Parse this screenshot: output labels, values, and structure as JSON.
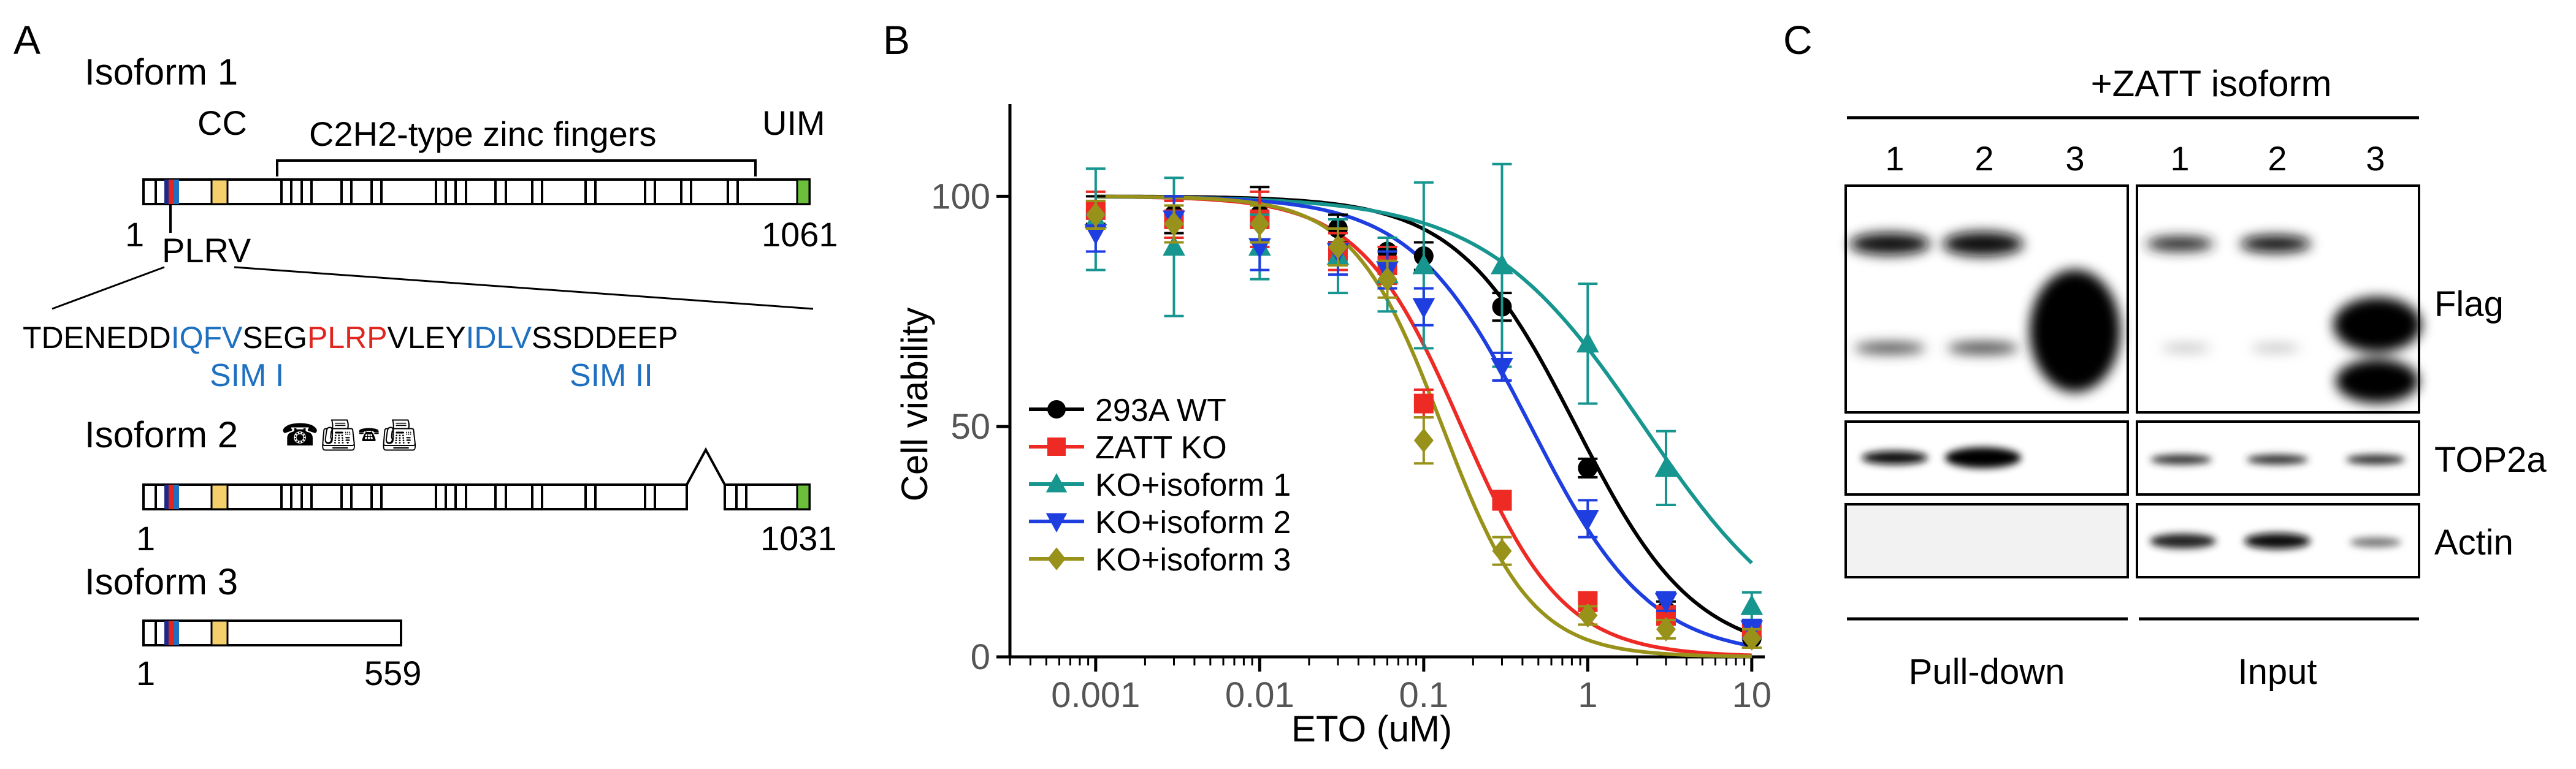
{
  "panelA": {
    "label": "A",
    "isoform1": {
      "title": "Isoform 1",
      "cc": "CC",
      "zinc": "C2H2-type zinc fingers",
      "uim": "UIM",
      "start": "1",
      "end": "1061",
      "plrv": "PLRV",
      "seq": {
        "s1": "TDENEDD",
        "s2": "IQFV",
        "s3": "SEG",
        "s4": "PLRP",
        "s5": "VLEY",
        "s6": "IDLV",
        "s7": "SSDDEEP"
      },
      "sim1": "SIM I",
      "sim2": "SIM II"
    },
    "isoform2": {
      "title": "Isoform 2",
      "decor": "☎︎📠︎🕿︎📠︎",
      "start": "1",
      "end": "1031"
    },
    "isoform3": {
      "title": "Isoform 3",
      "start": "1",
      "end": "559"
    },
    "colors": {
      "cc": "#f5cf6c",
      "uim": "#6bbf3a",
      "sim": "#1f70c1",
      "plrp": "#e0261f",
      "motif_dark": "#1b2a8a"
    }
  },
  "panelB": {
    "label": "B",
    "chart_data": {
      "type": "scatter",
      "title": "",
      "xlabel": "ETO (uM)",
      "ylabel": "Cell viability",
      "xscale": "log",
      "xlim": [
        0.0003,
        12
      ],
      "ylim": [
        0,
        120
      ],
      "xticks": [
        0.001,
        0.01,
        0.1,
        1,
        10
      ],
      "xtick_labels": [
        "0.001",
        "0.01",
        "0.1",
        "1",
        "10"
      ],
      "yticks": [
        0,
        50,
        100
      ],
      "ytick_labels": [
        "0",
        "50",
        "100"
      ],
      "x": [
        0.001,
        0.003,
        0.01,
        0.03,
        0.06,
        0.1,
        0.3,
        1,
        3,
        10
      ],
      "legend_position": "bottom-left",
      "series": [
        {
          "name": "293A WT",
          "color": "#000000",
          "marker": "circle",
          "ic50": 0.85,
          "hill": 1.2,
          "values": [
            97,
            96,
            96,
            93,
            88,
            87,
            76,
            41,
            10,
            4
          ],
          "errors": [
            3,
            4,
            6,
            3,
            3,
            3,
            3,
            2,
            2,
            2
          ]
        },
        {
          "name": "ZATT KO",
          "color": "#ee2a24",
          "marker": "square",
          "ic50": 0.17,
          "hill": 1.4,
          "values": [
            97,
            95,
            95,
            88,
            85,
            55,
            34,
            12,
            9,
            6
          ],
          "errors": [
            4,
            4,
            6,
            4,
            4,
            3,
            2,
            2,
            2,
            2
          ]
        },
        {
          "name": "KO+isoform 1",
          "color": "#17958f",
          "marker": "triangle-up",
          "ic50": 2.2,
          "hill": 0.9,
          "values": [
            95,
            89,
            89,
            87,
            83,
            85,
            85,
            68,
            41,
            11
          ],
          "errors": [
            11,
            15,
            7,
            8,
            8,
            18,
            22,
            13,
            8,
            3
          ]
        },
        {
          "name": "KO+isoform 2",
          "color": "#1f3ee0",
          "marker": "triangle-down",
          "ic50": 0.45,
          "hill": 1.2,
          "values": [
            92,
            95,
            89,
            88,
            84,
            76,
            63,
            30,
            12,
            6
          ],
          "errors": [
            4,
            5,
            5,
            5,
            4,
            4,
            3,
            4,
            2,
            2
          ]
        },
        {
          "name": "KO+isoform 3",
          "color": "#98921a",
          "marker": "diamond",
          "ic50": 0.13,
          "hill": 1.6,
          "values": [
            96,
            94,
            94,
            89,
            82,
            47,
            23,
            9,
            6,
            4
          ],
          "errors": [
            3,
            4,
            4,
            4,
            4,
            5,
            3,
            2,
            2,
            2
          ]
        }
      ]
    }
  },
  "panelC": {
    "label": "C",
    "header": "+ZATT isoform",
    "lanes": [
      "1",
      "2",
      "3"
    ],
    "row_labels": [
      "Flag",
      "TOP2a",
      "Actin"
    ],
    "pulldown_label": "Pull-down",
    "input_label": "Input"
  }
}
